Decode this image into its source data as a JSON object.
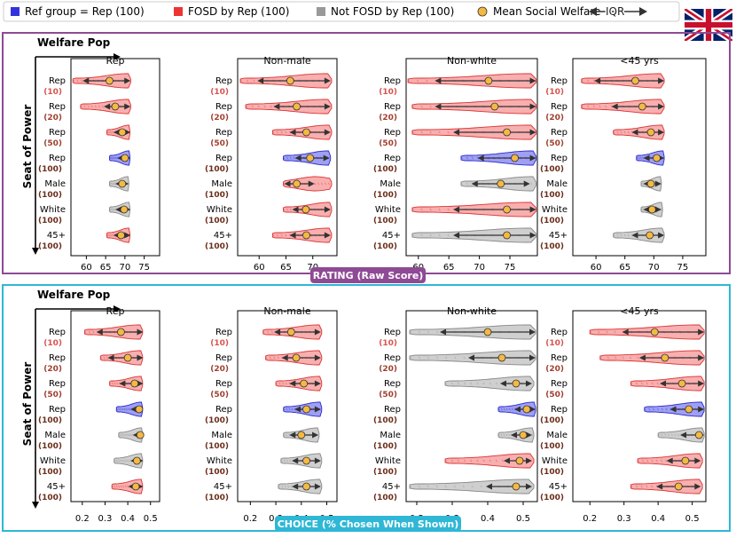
{
  "legend": {
    "ref": "Ref group = Rep (100)",
    "fosd": "FOSD by Rep (100)",
    "notfosd": "Not FOSD by Rep (100)",
    "mean": "Mean Social Welfare",
    "iqr": "IQR"
  },
  "colors": {
    "ref": "#3333dd",
    "fosd": "#ee4444",
    "notfosd": "#999999",
    "mean": "#f5b942",
    "rating_frame": "#8e4a94",
    "choice_frame": "#2fb7d6"
  },
  "flag_icon": "uk-flag-icon",
  "row_labels": [
    "Rep",
    "Rep",
    "Rep",
    "Rep",
    "Male",
    "White",
    "45+"
  ],
  "row_sizes": [
    "(10)",
    "(20)",
    "(50)",
    "(100)",
    "(100)",
    "(100)",
    "(100)"
  ],
  "chart_data": [
    {
      "type": "violin",
      "title": "RATING (Raw Score)",
      "welfare_pop_label": "Welfare Pop",
      "seat_label": "Seat of Power",
      "panels": [
        {
          "title": "Rep",
          "xlim": [
            56,
            79
          ],
          "ticks": [
            60,
            65,
            70,
            75
          ],
          "rows": [
            {
              "status": "fosd",
              "min": 56.5,
              "q1": 59.5,
              "mean": 66,
              "q3": 71,
              "max": 71.5
            },
            {
              "status": "fosd",
              "min": 58.5,
              "q1": 65,
              "mean": 67.5,
              "q3": 71,
              "max": 71.5
            },
            {
              "status": "fosd",
              "min": 65.3,
              "q1": 67.5,
              "mean": 69.3,
              "q3": 71,
              "max": 71.3
            },
            {
              "status": "ref",
              "min": 66,
              "q1": 68.5,
              "mean": 70,
              "q3": 71,
              "max": 71.3
            },
            {
              "status": "notfosd",
              "min": 66,
              "q1": 68,
              "mean": 69.3,
              "q3": 70.5,
              "max": 71
            },
            {
              "status": "notfosd",
              "min": 66,
              "q1": 68,
              "mean": 69.8,
              "q3": 71,
              "max": 71.3
            },
            {
              "status": "fosd",
              "min": 65.3,
              "q1": 67.5,
              "mean": 69,
              "q3": 71,
              "max": 71.3
            }
          ]
        },
        {
          "title": "Non-male",
          "xlim": [
            56,
            74.5
          ],
          "ticks": [
            60,
            65,
            70
          ],
          "rows": [
            {
              "status": "fosd",
              "min": 56.5,
              "q1": 60,
              "mean": 65.8,
              "q3": 73,
              "max": 73.5
            },
            {
              "status": "fosd",
              "min": 57.5,
              "q1": 63,
              "mean": 67,
              "q3": 73,
              "max": 73.5
            },
            {
              "status": "fosd",
              "min": 62.5,
              "q1": 66,
              "mean": 68.8,
              "q3": 73,
              "max": 73.5
            },
            {
              "status": "ref",
              "min": 64.5,
              "q1": 67,
              "mean": 69.5,
              "q3": 72.8,
              "max": 73.3
            },
            {
              "status": "fosd",
              "min": 64.5,
              "q1": 65,
              "mean": 67,
              "q3": 70,
              "max": 73.5
            },
            {
              "status": "fosd",
              "min": 64.5,
              "q1": 66.5,
              "mean": 68.7,
              "q3": 73,
              "max": 73.5
            },
            {
              "status": "fosd",
              "min": 62.5,
              "q1": 66,
              "mean": 68.8,
              "q3": 73,
              "max": 73.5
            }
          ]
        },
        {
          "title": "Non-white",
          "xlim": [
            58,
            79.5
          ],
          "ticks": [
            60,
            65,
            70,
            75
          ],
          "rows": [
            {
              "status": "fosd",
              "min": 58.3,
              "q1": 63,
              "mean": 71.5,
              "q3": 79,
              "max": 79.3
            },
            {
              "status": "fosd",
              "min": 59,
              "q1": 63,
              "mean": 72.5,
              "q3": 79,
              "max": 79.3
            },
            {
              "status": "fosd",
              "min": 59,
              "q1": 66,
              "mean": 74.5,
              "q3": 79,
              "max": 79.3
            },
            {
              "status": "ref",
              "min": 67,
              "q1": 70,
              "mean": 75.8,
              "q3": 79,
              "max": 79.3
            },
            {
              "status": "notfosd",
              "min": 67,
              "q1": 69,
              "mean": 73.5,
              "q3": 78,
              "max": 79.3
            },
            {
              "status": "fosd",
              "min": 59,
              "q1": 66,
              "mean": 74.5,
              "q3": 79,
              "max": 79.3
            },
            {
              "status": "notfosd",
              "min": 59,
              "q1": 66,
              "mean": 74.5,
              "q3": 79,
              "max": 79.3
            }
          ]
        },
        {
          "title": "<45 yrs",
          "xlim": [
            56,
            79
          ],
          "ticks": [
            60,
            65,
            70,
            75
          ],
          "rows": [
            {
              "status": "fosd",
              "min": 57.5,
              "q1": 60,
              "mean": 66.8,
              "q3": 71.5,
              "max": 71.8
            },
            {
              "status": "fosd",
              "min": 57.5,
              "q1": 63,
              "mean": 68,
              "q3": 71.5,
              "max": 71.8
            },
            {
              "status": "fosd",
              "min": 63,
              "q1": 66.5,
              "mean": 69.5,
              "q3": 71.5,
              "max": 71.8
            },
            {
              "status": "ref",
              "min": 67,
              "q1": 68.5,
              "mean": 70.5,
              "q3": 71.5,
              "max": 71.8
            },
            {
              "status": "notfosd",
              "min": 67.8,
              "q1": 68.5,
              "mean": 69.5,
              "q3": 71,
              "max": 71.3
            },
            {
              "status": "notfosd",
              "min": 67.8,
              "q1": 68.5,
              "mean": 69.7,
              "q3": 71,
              "max": 71.5
            },
            {
              "status": "notfosd",
              "min": 63,
              "q1": 66.5,
              "mean": 69.3,
              "q3": 71.5,
              "max": 71.8
            }
          ]
        }
      ]
    },
    {
      "type": "violin",
      "title": "CHOICE (% Chosen When Shown)",
      "welfare_pop_label": "Welfare Pop",
      "seat_label": "Seat of Power",
      "panels": [
        {
          "title": "Rep",
          "xlim": [
            0.15,
            0.54
          ],
          "ticks": [
            0.2,
            0.3,
            0.4,
            0.5
          ],
          "rows": [
            {
              "status": "fosd",
              "min": 0.21,
              "q1": 0.27,
              "mean": 0.37,
              "q3": 0.46,
              "max": 0.465
            },
            {
              "status": "fosd",
              "min": 0.28,
              "q1": 0.32,
              "mean": 0.4,
              "q3": 0.46,
              "max": 0.465
            },
            {
              "status": "fosd",
              "min": 0.32,
              "q1": 0.37,
              "mean": 0.43,
              "q3": 0.46,
              "max": 0.465
            },
            {
              "status": "ref",
              "min": 0.35,
              "q1": 0.42,
              "mean": 0.45,
              "q3": 0.46,
              "max": 0.465
            },
            {
              "status": "notfosd",
              "min": 0.36,
              "q1": 0.43,
              "mean": 0.455,
              "q3": 0.46,
              "max": 0.465
            },
            {
              "status": "notfosd",
              "min": 0.34,
              "q1": 0.42,
              "mean": 0.44,
              "q3": 0.46,
              "max": 0.465
            },
            {
              "status": "fosd",
              "min": 0.33,
              "q1": 0.41,
              "mean": 0.435,
              "q3": 0.46,
              "max": 0.465
            }
          ]
        },
        {
          "title": "Non-male",
          "xlim": [
            0.15,
            0.54
          ],
          "ticks": [
            0.2,
            0.3,
            0.4,
            0.5
          ],
          "rows": [
            {
              "status": "fosd",
              "min": 0.25,
              "q1": 0.3,
              "mean": 0.36,
              "q3": 0.47,
              "max": 0.48
            },
            {
              "status": "fosd",
              "min": 0.26,
              "q1": 0.33,
              "mean": 0.38,
              "q3": 0.47,
              "max": 0.48
            },
            {
              "status": "fosd",
              "min": 0.3,
              "q1": 0.36,
              "mean": 0.41,
              "q3": 0.47,
              "max": 0.48
            },
            {
              "status": "ref",
              "min": 0.33,
              "q1": 0.38,
              "mean": 0.42,
              "q3": 0.47,
              "max": 0.48
            },
            {
              "status": "notfosd",
              "min": 0.33,
              "q1": 0.36,
              "mean": 0.4,
              "q3": 0.46,
              "max": 0.47
            },
            {
              "status": "notfosd",
              "min": 0.32,
              "q1": 0.37,
              "mean": 0.42,
              "q3": 0.47,
              "max": 0.48
            },
            {
              "status": "notfosd",
              "min": 0.31,
              "q1": 0.37,
              "mean": 0.42,
              "q3": 0.47,
              "max": 0.48
            }
          ]
        },
        {
          "title": "Non-white",
          "xlim": [
            0.17,
            0.54
          ],
          "ticks": [
            0.2,
            0.3,
            0.4,
            0.5
          ],
          "rows": [
            {
              "status": "notfosd",
              "min": 0.18,
              "q1": 0.27,
              "mean": 0.4,
              "q3": 0.53,
              "max": 0.535
            },
            {
              "status": "notfosd",
              "min": 0.18,
              "q1": 0.35,
              "mean": 0.44,
              "q3": 0.53,
              "max": 0.535
            },
            {
              "status": "notfosd",
              "min": 0.28,
              "q1": 0.44,
              "mean": 0.48,
              "q3": 0.52,
              "max": 0.53
            },
            {
              "status": "ref",
              "min": 0.43,
              "q1": 0.48,
              "mean": 0.51,
              "q3": 0.53,
              "max": 0.535
            },
            {
              "status": "notfosd",
              "min": 0.43,
              "q1": 0.47,
              "mean": 0.5,
              "q3": 0.52,
              "max": 0.53
            },
            {
              "status": "fosd",
              "min": 0.28,
              "q1": 0.45,
              "mean": 0.49,
              "q3": 0.52,
              "max": 0.53
            },
            {
              "status": "notfosd",
              "min": 0.18,
              "q1": 0.4,
              "mean": 0.48,
              "q3": 0.52,
              "max": 0.53
            }
          ]
        },
        {
          "title": "<45 yrs",
          "xlim": [
            0.15,
            0.54
          ],
          "ticks": [
            0.2,
            0.3,
            0.4,
            0.5
          ],
          "rows": [
            {
              "status": "fosd",
              "min": 0.2,
              "q1": 0.3,
              "mean": 0.39,
              "q3": 0.53,
              "max": 0.535
            },
            {
              "status": "fosd",
              "min": 0.23,
              "q1": 0.35,
              "mean": 0.42,
              "q3": 0.53,
              "max": 0.535
            },
            {
              "status": "fosd",
              "min": 0.32,
              "q1": 0.41,
              "mean": 0.47,
              "q3": 0.53,
              "max": 0.535
            },
            {
              "status": "ref",
              "min": 0.36,
              "q1": 0.44,
              "mean": 0.49,
              "q3": 0.53,
              "max": 0.535
            },
            {
              "status": "notfosd",
              "min": 0.4,
              "q1": 0.47,
              "mean": 0.52,
              "q3": 0.53,
              "max": 0.535
            },
            {
              "status": "fosd",
              "min": 0.34,
              "q1": 0.43,
              "mean": 0.48,
              "q3": 0.52,
              "max": 0.53
            },
            {
              "status": "fosd",
              "min": 0.32,
              "q1": 0.4,
              "mean": 0.46,
              "q3": 0.52,
              "max": 0.53
            }
          ]
        }
      ]
    }
  ]
}
